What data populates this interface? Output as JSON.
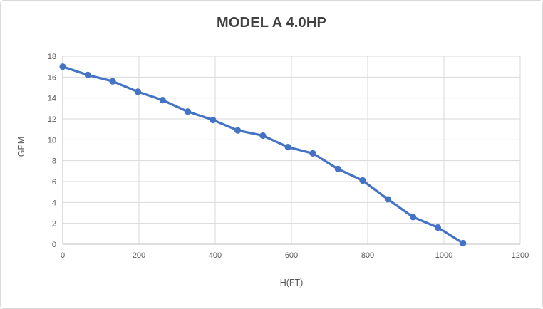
{
  "chart_data": {
    "type": "line",
    "title": "MODEL A 4.0HP",
    "xlabel": "H(FT)",
    "ylabel": "GPM",
    "xlim": [
      0,
      1200
    ],
    "ylim": [
      0,
      18
    ],
    "x_ticks": [
      0,
      200,
      400,
      600,
      800,
      1000,
      1200
    ],
    "y_ticks": [
      0,
      2,
      4,
      6,
      8,
      10,
      12,
      14,
      16,
      18
    ],
    "grid": true,
    "legend_position": "none",
    "marker": "circle",
    "series": [
      {
        "name": "MODEL A 4.0HP",
        "x": [
          0,
          66,
          131,
          197,
          262,
          328,
          394,
          459,
          525,
          591,
          656,
          722,
          787,
          853,
          919,
          984,
          1050
        ],
        "y": [
          17.0,
          16.2,
          15.6,
          14.6,
          13.8,
          12.7,
          11.9,
          10.9,
          10.4,
          9.3,
          8.7,
          7.2,
          6.1,
          4.3,
          2.6,
          1.6,
          0.1
        ]
      }
    ]
  },
  "colors": {
    "series_line": "#4472C4",
    "marker_fill": "#4472C4",
    "gridline": "#D9D9D9",
    "axis_line": "#BFBFBF",
    "tick_text": "#595959",
    "title_text": "#404040",
    "frame_border": "#D9D9D9",
    "background": "#FFFFFF"
  }
}
